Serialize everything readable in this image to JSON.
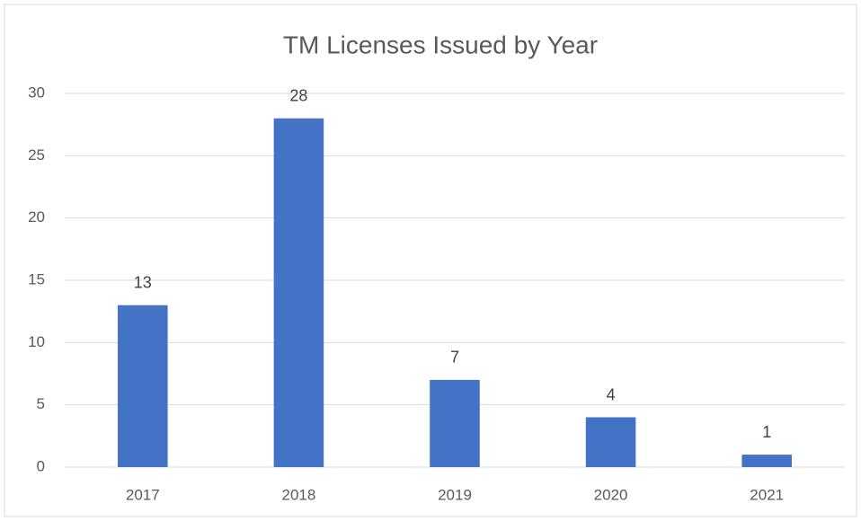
{
  "chart_data": {
    "type": "bar",
    "title": "TM Licenses Issued by Year",
    "categories": [
      "2017",
      "2018",
      "2019",
      "2020",
      "2021"
    ],
    "values": [
      13,
      28,
      7,
      4,
      1
    ],
    "color": "#4472c4",
    "ylim": [
      0,
      30
    ],
    "yticks": [
      0,
      5,
      10,
      15,
      20,
      25,
      30
    ],
    "grid": true
  }
}
